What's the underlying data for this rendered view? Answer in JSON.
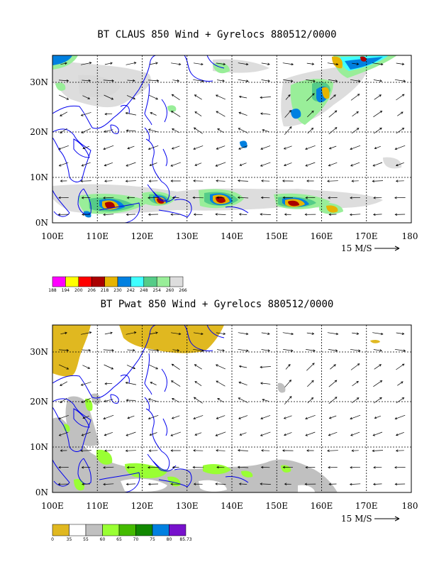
{
  "maps": [
    {
      "title": "BT CLAUS 850 Wind + Gyrelocs 880512/0000",
      "x_ticks": [
        "100E",
        "110E",
        "120E",
        "130E",
        "140E",
        "150E",
        "160E",
        "170E",
        "180"
      ],
      "y_ticks": [
        "0N",
        "10N",
        "20N",
        "30N"
      ],
      "scale_label": "15 M/S",
      "colorbar": {
        "labels": [
          "188",
          "194",
          "200",
          "206",
          "218",
          "230",
          "242",
          "248",
          "254",
          "260",
          "266"
        ],
        "colors": [
          "#ff00ff",
          "#ffff00",
          "#ff0000",
          "#aa0000",
          "#e6b400",
          "#0080e0",
          "#40ffff",
          "#55cc88",
          "#99ee99",
          "#dddddd"
        ]
      }
    },
    {
      "title": "BT Pwat 850 Wind + Gyrelocs 880512/0000",
      "x_ticks": [
        "100E",
        "110E",
        "120E",
        "130E",
        "140E",
        "150E",
        "160E",
        "170E",
        "180"
      ],
      "y_ticks": [
        "0N",
        "10N",
        "20N",
        "30N"
      ],
      "scale_label": "15 M/S",
      "colorbar": {
        "labels": [
          "0",
          "35",
          "55",
          "60",
          "65",
          "70",
          "75",
          "80",
          "85.73"
        ],
        "colors": [
          "#e0b820",
          "#ffffff",
          "#c0c0c0",
          "#99ff33",
          "#44bb00",
          "#118800",
          "#0080e0",
          "#7711cc"
        ]
      }
    }
  ]
}
